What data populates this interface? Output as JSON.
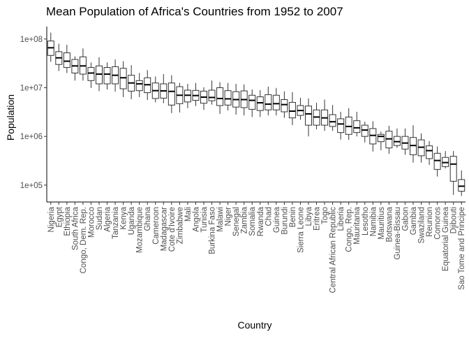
{
  "chart_data": {
    "type": "boxplot",
    "title": "Mean Population of Africa's Countries from 1952 to 2007",
    "xlabel": "Country",
    "ylabel": "Population",
    "yscale": "log10",
    "ylim": [
      45000,
      180000000
    ],
    "yticks": [
      100000,
      1000000,
      10000000,
      100000000
    ],
    "ytick_labels": [
      "1e+05",
      "1e+06",
      "1e+07",
      "1e+08"
    ],
    "grid": false,
    "categories": [
      "Nigeria",
      "Egypt",
      "Ethiopia",
      "South Africa",
      "Congo, Dem. Rep.",
      "Morocco",
      "Sudan",
      "Algeria",
      "Tanzania",
      "Kenya",
      "Uganda",
      "Mozambique",
      "Ghana",
      "Cameroon",
      "Madagascar",
      "Cote d'Ivoire",
      "Zimbabwe",
      "Mali",
      "Angola",
      "Tunisia",
      "Burkina Faso",
      "Malawi",
      "Niger",
      "Senegal",
      "Zambia",
      "Somalia",
      "Rwanda",
      "Chad",
      "Guinea",
      "Burundi",
      "Benin",
      "Sierra Leone",
      "Libya",
      "Eritrea",
      "Togo",
      "Central African Republic",
      "Liberia",
      "Congo, Rep.",
      "Mauritania",
      "Lesotho",
      "Namibia",
      "Mauritius",
      "Botswana",
      "Guinea-Bissau",
      "Gabon",
      "Gambia",
      "Swaziland",
      "Reunion",
      "Comoros",
      "Equatorial Guinea",
      "Djibouti",
      "Sao Tome and Principe"
    ],
    "series": [
      {
        "values": [
          {
            "min": 34000000,
            "q1": 46000000,
            "median": 66000000,
            "q3": 91000000,
            "max": 135000000
          },
          {
            "min": 22000000,
            "q1": 30000000,
            "median": 41000000,
            "q3": 55000000,
            "max": 80000000
          },
          {
            "min": 20000000,
            "q1": 26000000,
            "median": 35000000,
            "q3": 52000000,
            "max": 76000000
          },
          {
            "min": 14000000,
            "q1": 20000000,
            "median": 28000000,
            "q3": 38000000,
            "max": 44000000
          },
          {
            "min": 14000000,
            "q1": 19000000,
            "median": 28000000,
            "q3": 43000000,
            "max": 64000000
          },
          {
            "min": 9900000,
            "q1": 14000000,
            "median": 20000000,
            "q3": 26000000,
            "max": 33000000
          },
          {
            "min": 8500000,
            "q1": 12000000,
            "median": 19000000,
            "q3": 28000000,
            "max": 42000000
          },
          {
            "min": 9200000,
            "q1": 12000000,
            "median": 19000000,
            "q3": 26000000,
            "max": 33000000
          },
          {
            "min": 8300000,
            "q1": 12000000,
            "median": 18000000,
            "q3": 27000000,
            "max": 38000000
          },
          {
            "min": 6400000,
            "q1": 9500000,
            "median": 16000000,
            "q3": 25000000,
            "max": 35000000
          },
          {
            "min": 5800000,
            "q1": 8500000,
            "median": 12500000,
            "q3": 18000000,
            "max": 29000000
          },
          {
            "min": 6400000,
            "q1": 8700000,
            "median": 12000000,
            "q3": 14000000,
            "max": 20000000
          },
          {
            "min": 5600000,
            "q1": 7900000,
            "median": 11500000,
            "q3": 16000000,
            "max": 23000000
          },
          {
            "min": 5000000,
            "q1": 6000000,
            "median": 8700000,
            "q3": 12500000,
            "max": 17000000
          },
          {
            "min": 4800000,
            "q1": 6100000,
            "median": 8600000,
            "q3": 12000000,
            "max": 19000000
          },
          {
            "min": 3000000,
            "q1": 4400000,
            "median": 8400000,
            "q3": 12500000,
            "max": 18000000
          },
          {
            "min": 3100000,
            "q1": 4700000,
            "median": 7000000,
            "q3": 10500000,
            "max": 12500000
          },
          {
            "min": 3800000,
            "q1": 5100000,
            "median": 7000000,
            "q3": 8900000,
            "max": 12000000
          },
          {
            "min": 4200000,
            "q1": 5500000,
            "median": 6900000,
            "q3": 8800000,
            "max": 12500000
          },
          {
            "min": 3500000,
            "q1": 4800000,
            "median": 6400000,
            "q3": 8500000,
            "max": 10200000
          },
          {
            "min": 4500000,
            "q1": 5400000,
            "median": 6300000,
            "q3": 8900000,
            "max": 14000000
          },
          {
            "min": 2900000,
            "q1": 4300000,
            "median": 6000000,
            "q3": 10000000,
            "max": 13000000
          },
          {
            "min": 3400000,
            "q1": 4400000,
            "median": 5900000,
            "q3": 8700000,
            "max": 12500000
          },
          {
            "min": 2800000,
            "q1": 4000000,
            "median": 5700000,
            "q3": 8300000,
            "max": 12000000
          },
          {
            "min": 2700000,
            "q1": 3900000,
            "median": 5700000,
            "q3": 8600000,
            "max": 11700000
          },
          {
            "min": 2500000,
            "q1": 3600000,
            "median": 5500000,
            "q3": 7000000,
            "max": 9200000
          },
          {
            "min": 2500000,
            "q1": 3400000,
            "median": 4900000,
            "q3": 6500000,
            "max": 8900000
          },
          {
            "min": 2700000,
            "q1": 3500000,
            "median": 4600000,
            "q3": 7200000,
            "max": 10500000
          },
          {
            "min": 2700000,
            "q1": 3500000,
            "median": 4700000,
            "q3": 7000000,
            "max": 9900000
          },
          {
            "min": 2400000,
            "q1": 3200000,
            "median": 4500000,
            "q3": 5700000,
            "max": 8400000
          },
          {
            "min": 1700000,
            "q1": 2400000,
            "median": 3300000,
            "q3": 5000000,
            "max": 8100000
          },
          {
            "min": 2200000,
            "q1": 2700000,
            "median": 3400000,
            "q3": 4300000,
            "max": 6200000
          },
          {
            "min": 1000000,
            "q1": 1700000,
            "median": 2900000,
            "q3": 4200000,
            "max": 6000000
          },
          {
            "min": 1400000,
            "q1": 1700000,
            "median": 2500000,
            "q3": 3500000,
            "max": 4900000
          },
          {
            "min": 1300000,
            "q1": 1700000,
            "median": 2400000,
            "q3": 3500000,
            "max": 5700000
          },
          {
            "min": 1300000,
            "q1": 1600000,
            "median": 2000000,
            "q3": 2800000,
            "max": 4400000
          },
          {
            "min": 860000,
            "q1": 1200000,
            "median": 1800000,
            "q3": 2300000,
            "max": 3200000
          },
          {
            "min": 850000,
            "q1": 1100000,
            "median": 1600000,
            "q3": 2500000,
            "max": 3800000
          },
          {
            "min": 1000000,
            "q1": 1200000,
            "median": 1500000,
            "q3": 2100000,
            "max": 3200000
          },
          {
            "min": 750000,
            "q1": 1000000,
            "median": 1350000,
            "q3": 1700000,
            "max": 2000000
          },
          {
            "min": 490000,
            "q1": 700000,
            "median": 1050000,
            "q3": 1450000,
            "max": 2050000
          },
          {
            "min": 520000,
            "q1": 780000,
            "median": 1000000,
            "q3": 1100000,
            "max": 1250000
          },
          {
            "min": 440000,
            "q1": 580000,
            "median": 890000,
            "q3": 1280000,
            "max": 1650000
          },
          {
            "min": 580000,
            "q1": 650000,
            "median": 780000,
            "q3": 1000000,
            "max": 1450000
          },
          {
            "min": 420000,
            "q1": 550000,
            "median": 730000,
            "q3": 1000000,
            "max": 1450000
          },
          {
            "min": 290000,
            "q1": 420000,
            "median": 650000,
            "q3": 950000,
            "max": 1700000
          },
          {
            "min": 290000,
            "q1": 400000,
            "median": 600000,
            "q3": 850000,
            "max": 1150000
          },
          {
            "min": 260000,
            "q1": 350000,
            "median": 510000,
            "q3": 640000,
            "max": 800000
          },
          {
            "min": 150000,
            "q1": 210000,
            "median": 320000,
            "q3": 450000,
            "max": 620000
          },
          {
            "min": 220000,
            "q1": 240000,
            "median": 290000,
            "q3": 370000,
            "max": 500000
          },
          {
            "min": 63000,
            "q1": 120000,
            "median": 270000,
            "q3": 390000,
            "max": 500000
          },
          {
            "min": 60000,
            "q1": 75000,
            "median": 95000,
            "q3": 130000,
            "max": 200000
          }
        ]
      }
    ]
  }
}
